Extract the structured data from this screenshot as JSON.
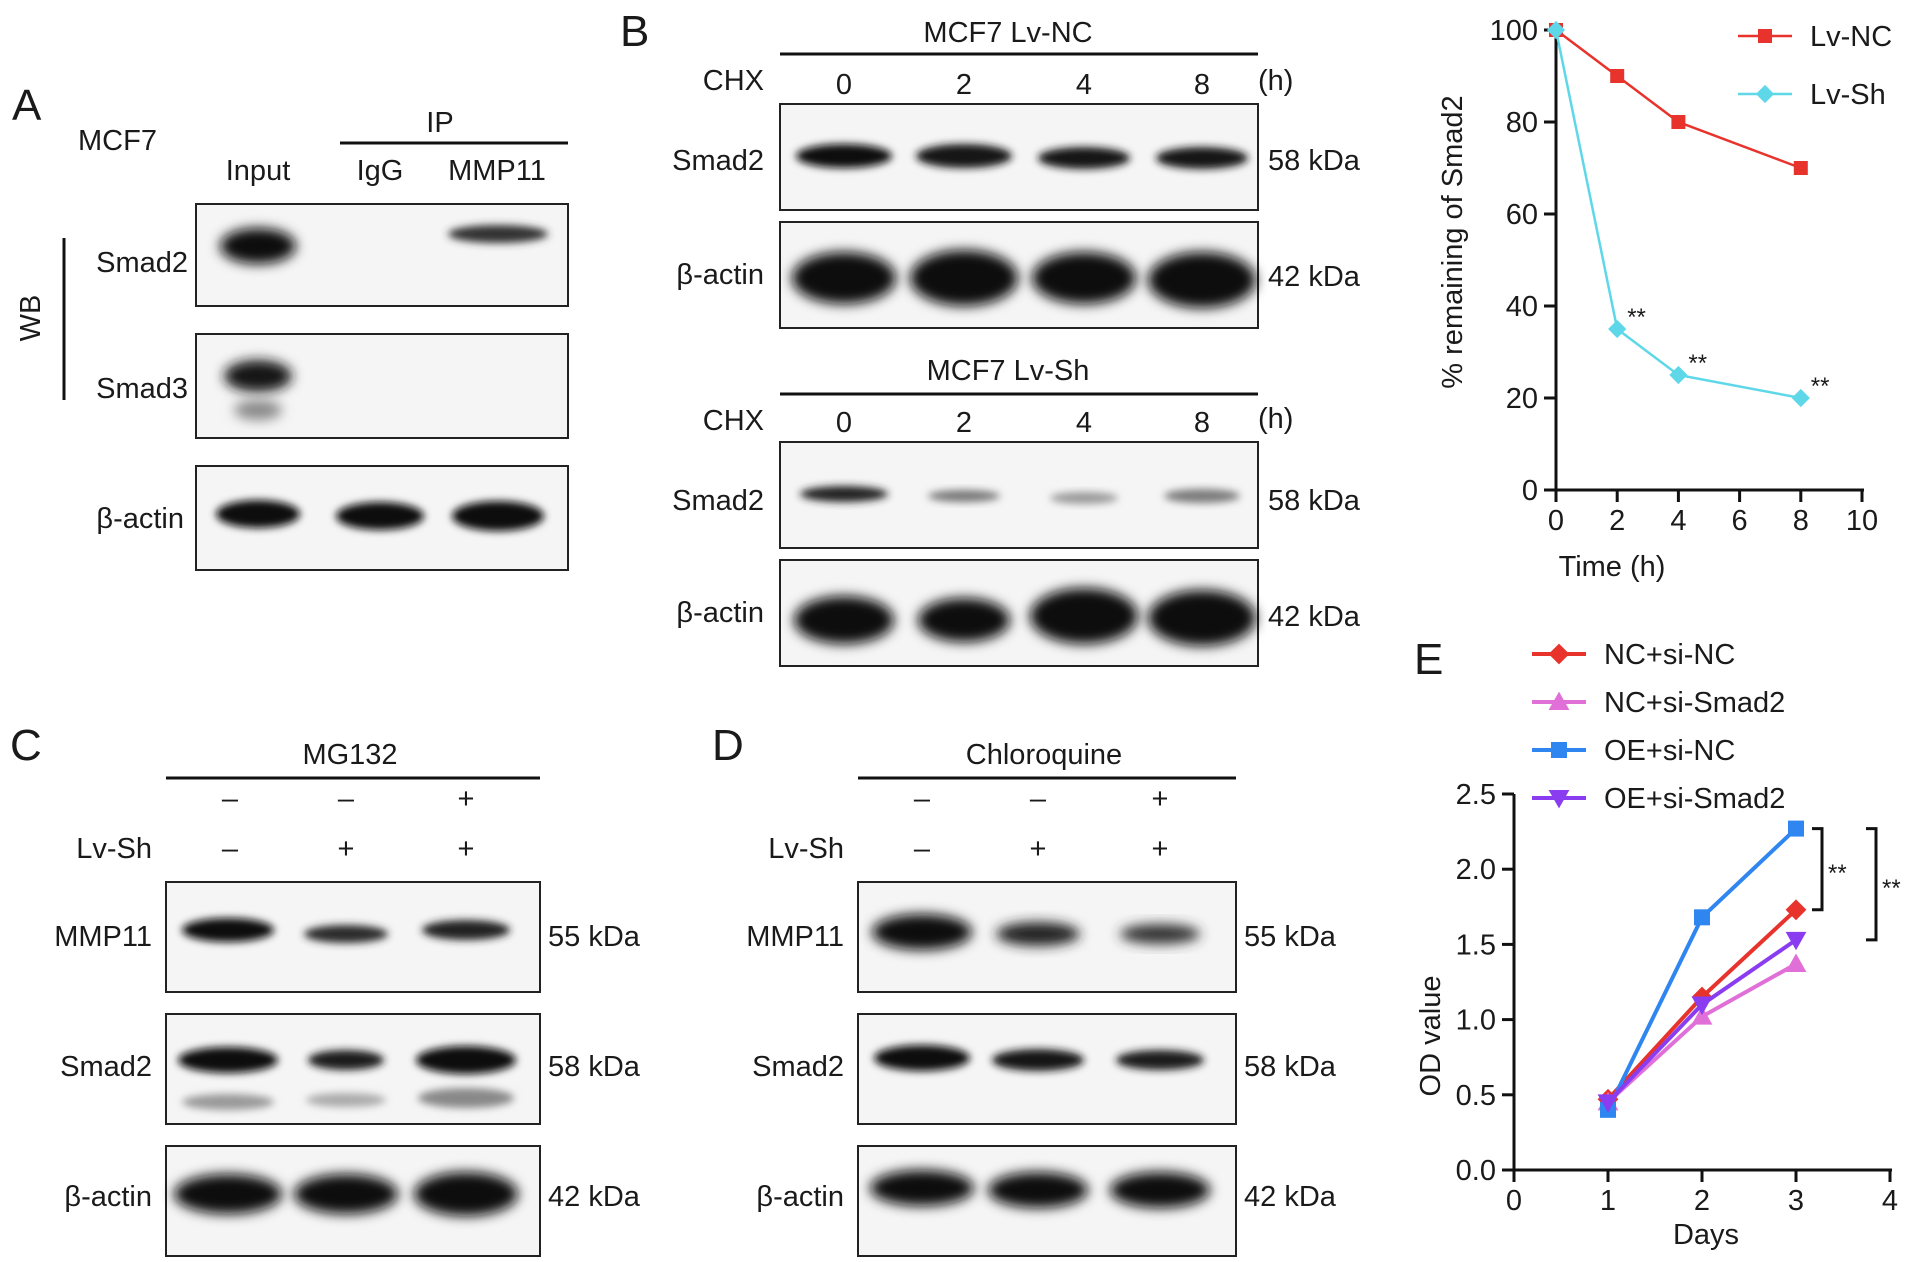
{
  "panels": {
    "a": "A",
    "b": "B",
    "c": "C",
    "d": "D",
    "e": "E"
  },
  "panel_a": {
    "cell_line": "MCF7",
    "group": "IP",
    "lanes": [
      "Input",
      "IgG",
      "MMP11"
    ],
    "method": "WB",
    "rows": [
      "Smad2",
      "Smad3",
      "β-actin"
    ]
  },
  "panel_b": {
    "blot1_title": "MCF7 Lv-NC",
    "blot2_title": "MCF7 Lv-Sh",
    "treatment": "CHX",
    "timepoints": [
      "0",
      "2",
      "4",
      "8"
    ],
    "time_unit": "(h)",
    "rows": [
      "Smad2",
      "β-actin"
    ],
    "sizes": [
      "58 kDa",
      "42 kDa"
    ]
  },
  "panel_c": {
    "treatment": "MG132",
    "row1": [
      "–",
      "–",
      "+"
    ],
    "row2_label": "Lv-Sh",
    "row2": [
      "–",
      "+",
      "+"
    ],
    "rows": [
      "MMP11",
      "Smad2",
      "β-actin"
    ],
    "sizes": [
      "55 kDa",
      "58 kDa",
      "42 kDa"
    ]
  },
  "panel_d": {
    "treatment": "Chloroquine",
    "row1": [
      "–",
      "–",
      "+"
    ],
    "row2_label": "Lv-Sh",
    "row2": [
      "–",
      "+",
      "+"
    ],
    "rows": [
      "MMP11",
      "Smad2",
      "β-actin"
    ],
    "sizes": [
      "55 kDa",
      "58 kDa",
      "42 kDa"
    ]
  },
  "chart_data": [
    {
      "type": "line",
      "xlabel": "Time (h)",
      "ylabel": "% remaining of Smad2",
      "xlim": [
        0,
        10
      ],
      "ylim": [
        0,
        100
      ],
      "xticks": [
        "0",
        "2",
        "4",
        "6",
        "8",
        "10"
      ],
      "yticks": [
        "0",
        "20",
        "40",
        "60",
        "80",
        "100"
      ],
      "legend_position": "top-right",
      "series": [
        {
          "name": "Lv-NC",
          "color": "#e8332d",
          "marker": "square",
          "x": [
            0,
            2,
            4,
            8
          ],
          "y": [
            100,
            90,
            80,
            70
          ],
          "annotations": [
            "",
            "",
            "",
            ""
          ]
        },
        {
          "name": "Lv-Sh",
          "color": "#5ed8e8",
          "marker": "diamond",
          "x": [
            0,
            2,
            4,
            8
          ],
          "y": [
            100,
            35,
            25,
            20
          ],
          "annotations": [
            "",
            "**",
            "**",
            "**"
          ]
        }
      ]
    },
    {
      "type": "line",
      "xlabel": "Days",
      "ylabel": "OD value",
      "xlim": [
        0,
        4
      ],
      "ylim": [
        0,
        2.5
      ],
      "xticks": [
        "0",
        "1",
        "2",
        "3",
        "4"
      ],
      "yticks": [
        "0.0",
        "0.5",
        "1.0",
        "1.5",
        "2.0",
        "2.5"
      ],
      "legend_position": "top",
      "significance": [
        "**",
        "**"
      ],
      "series": [
        {
          "name": "NC+si-NC",
          "color": "#e8332d",
          "marker": "diamond",
          "x": [
            1,
            2,
            3
          ],
          "y": [
            0.47,
            1.15,
            1.73
          ]
        },
        {
          "name": "NC+si-Smad2",
          "color": "#e070d8",
          "marker": "triangle-up",
          "x": [
            1,
            2,
            3
          ],
          "y": [
            0.45,
            1.02,
            1.37
          ]
        },
        {
          "name": "OE+si-NC",
          "color": "#2f86f0",
          "marker": "square",
          "x": [
            1,
            2,
            3
          ],
          "y": [
            0.4,
            1.68,
            2.27
          ]
        },
        {
          "name": "OE+si-Smad2",
          "color": "#8a3df0",
          "marker": "triangle-down",
          "x": [
            1,
            2,
            3
          ],
          "y": [
            0.45,
            1.1,
            1.53
          ]
        }
      ]
    }
  ]
}
